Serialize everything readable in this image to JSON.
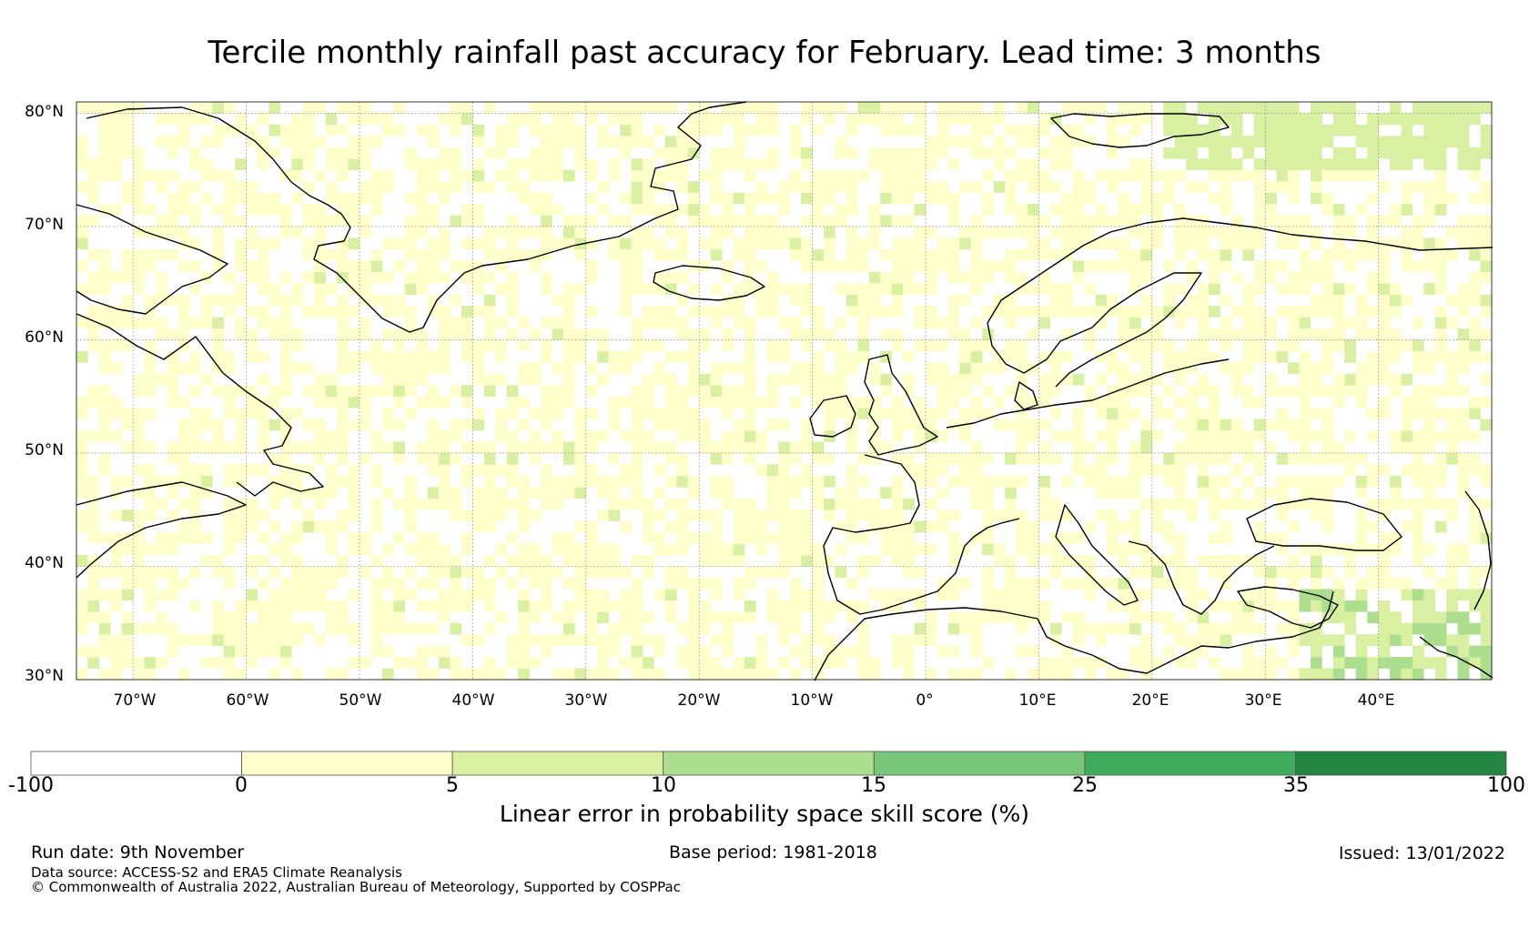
{
  "title": "Tercile monthly rainfall past accuracy for February. Lead time: 3 months",
  "map": {
    "lat_labels": [
      "80°N",
      "70°N",
      "60°N",
      "50°N",
      "40°N",
      "30°N"
    ],
    "lat_values": [
      80,
      70,
      60,
      50,
      40,
      30
    ],
    "lon_labels": [
      "70°W",
      "60°W",
      "50°W",
      "40°W",
      "30°W",
      "20°W",
      "10°W",
      "0°",
      "10°E",
      "20°E",
      "30°E",
      "40°E"
    ],
    "lon_values": [
      -70,
      -60,
      -50,
      -40,
      -30,
      -20,
      -10,
      0,
      10,
      20,
      30,
      40
    ],
    "lon_range": [
      -75,
      50
    ],
    "lat_range": [
      30,
      81
    ],
    "dominant_category": "0 to 5",
    "higher_skill_regions": [
      "eastern Mediterranean / Middle East (10–15)",
      "Barents Sea (5–10)"
    ]
  },
  "colorbar": {
    "ticks": [
      "-100",
      "0",
      "5",
      "10",
      "15",
      "25",
      "35",
      "100"
    ],
    "colors": [
      "#ffffff",
      "#ffffcc",
      "#d9f0a3",
      "#addd8e",
      "#78c679",
      "#41ab5d",
      "#238443"
    ],
    "label": "Linear error in probability space skill score (%)"
  },
  "footer": {
    "run_date": "Run date: 9th November",
    "base_period": "Base period: 1981-2018",
    "issued": "Issued: 13/01/2022",
    "data_source": "Data source: ACCESS-S2 and ERA5 Climate Reanalysis",
    "copyright": "© Commonwealth of Australia 2022, Australian Bureau of Meteorology, Supported by COSPPac"
  }
}
